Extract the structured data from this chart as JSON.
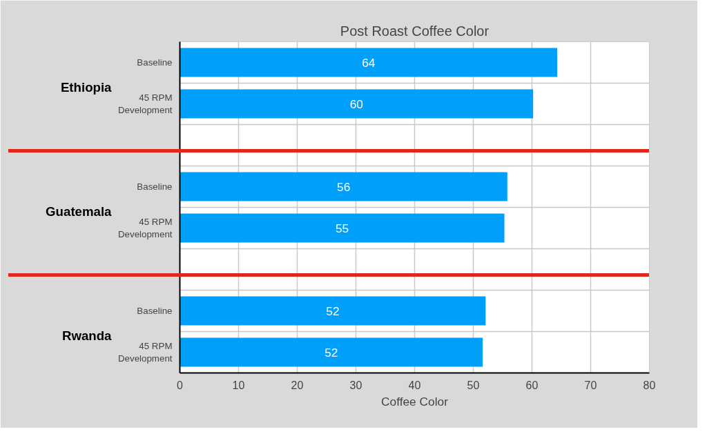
{
  "chart_data": {
    "type": "bar",
    "orientation": "horizontal",
    "title": "Post Roast Coffee Color",
    "xlabel": "Coffee Color",
    "categories": [
      "Baseline",
      "45 RPM\nDevelopment",
      null,
      "Baseline",
      "45 RPM\nDevelopment",
      null,
      "Baseline",
      "45 RPM\nDevelopment"
    ],
    "values": [
      64.3,
      60.2,
      null,
      55.8,
      55.3,
      null,
      52.1,
      51.6
    ],
    "value_labels": [
      "64",
      "60",
      null,
      "56",
      "55",
      null,
      "52",
      "52"
    ],
    "color": "#009ffa",
    "xlim": [
      0,
      80
    ],
    "xticks": [
      0,
      10,
      20,
      30,
      40,
      50,
      60,
      70,
      80
    ],
    "grid": true,
    "annotations": [
      "Ethiopia",
      "Guatemala",
      "Rwanda"
    ]
  }
}
